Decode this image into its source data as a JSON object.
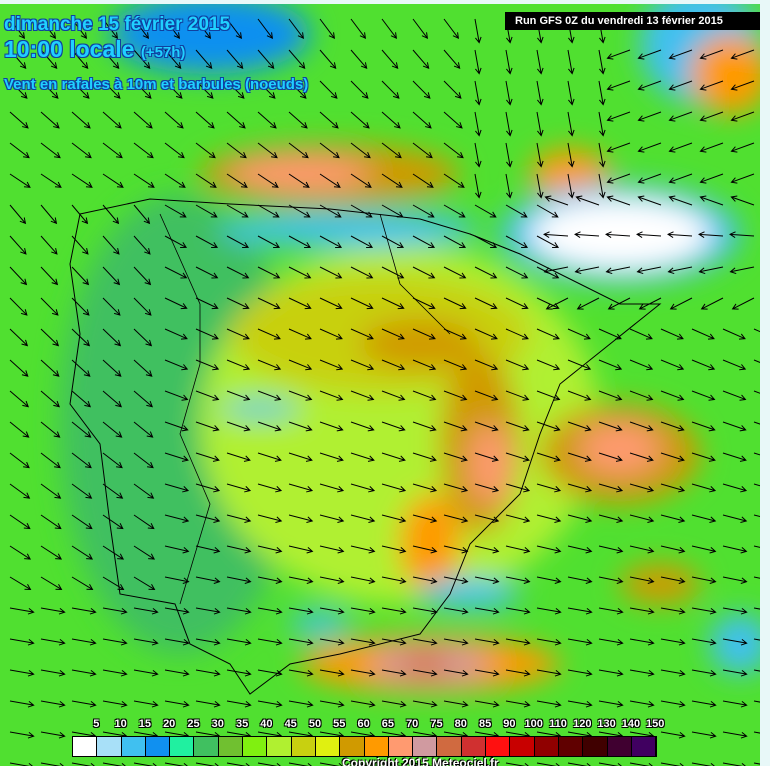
{
  "header": {
    "date": "dimanche 15 février 2015",
    "time": "10:00 locale",
    "offset": "(+57h)",
    "subtitle": "Vent en rafales à 10m et barbules (noeuds)",
    "run": "Run GFS 0Z du vendredi 13 février 2015"
  },
  "legend": {
    "labels": [
      "5",
      "10",
      "15",
      "20",
      "25",
      "30",
      "35",
      "40",
      "45",
      "50",
      "55",
      "60",
      "65",
      "70",
      "75",
      "80",
      "85",
      "90",
      "100",
      "110",
      "120",
      "130",
      "140",
      "150"
    ],
    "colors": [
      "#ffffff",
      "#a8e0f8",
      "#40c0f0",
      "#1090f0",
      "#20f0a0",
      "#40c060",
      "#70c030",
      "#80f010",
      "#b0f030",
      "#c8d010",
      "#e0f010",
      "#d09a00",
      "#ff9a00",
      "#ff9a70",
      "#d09aa0",
      "#d06a40",
      "#d03030",
      "#ff1010",
      "#c80000",
      "#900000",
      "#600000",
      "#400000",
      "#400030",
      "#400060"
    ]
  },
  "copyright": "Copyright 2015 Meteociel.fr"
}
